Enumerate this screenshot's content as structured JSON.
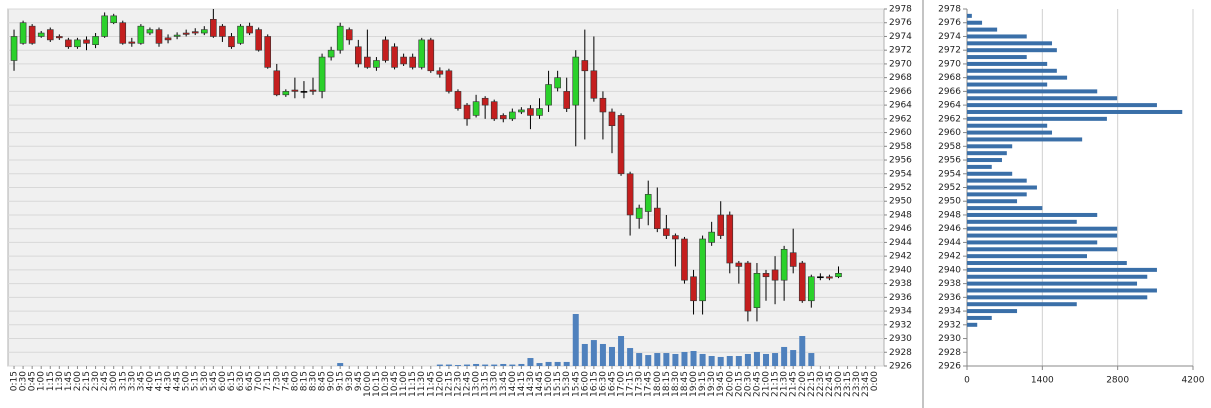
{
  "chart_data": [
    {
      "type": "candlestick",
      "categories": [
        "0:15",
        "0:30",
        "0:45",
        "1:00",
        "1:15",
        "1:30",
        "1:45",
        "2:00",
        "2:15",
        "2:30",
        "2:45",
        "3:00",
        "3:15",
        "3:30",
        "3:45",
        "4:00",
        "4:15",
        "4:30",
        "4:45",
        "5:00",
        "5:15",
        "5:30",
        "5:45",
        "6:00",
        "6:15",
        "6:30",
        "6:45",
        "7:00",
        "7:15",
        "7:30",
        "7:45",
        "8:00",
        "8:15",
        "8:30",
        "8:45",
        "9:00",
        "9:15",
        "9:30",
        "9:45",
        "10:00",
        "10:15",
        "10:30",
        "10:45",
        "11:00",
        "11:15",
        "11:30",
        "11:45",
        "12:00",
        "12:15",
        "12:30",
        "12:45",
        "13:00",
        "13:15",
        "13:30",
        "13:45",
        "14:00",
        "14:15",
        "14:30",
        "14:45",
        "15:00",
        "15:15",
        "15:30",
        "15:45",
        "16:00",
        "16:15",
        "16:30",
        "16:45",
        "17:00",
        "17:15",
        "17:30",
        "17:45",
        "18:00",
        "18:15",
        "18:30",
        "18:45",
        "19:00",
        "19:15",
        "19:30",
        "19:45",
        "20:00",
        "20:15",
        "20:30",
        "20:45",
        "21:00",
        "21:15",
        "21:30",
        "21:45",
        "22:00",
        "22:15",
        "22:30",
        "22:45",
        "23:00",
        "23:15",
        "23:30",
        "23:45",
        "0:00"
      ],
      "open": [
        2970.5,
        2973,
        2975.5,
        2974,
        2975,
        2974,
        2973.5,
        2972.5,
        2973.5,
        2972.8,
        2974,
        2976,
        2976,
        2973.2,
        2973,
        2974.5,
        2975,
        2973.8,
        2974,
        2974.5,
        2974.7,
        2974.5,
        2976.5,
        2975.5,
        2974,
        2973,
        2975.5,
        2975,
        2974,
        2969,
        2965.5,
        2966.2,
        2966,
        2966.2,
        2966,
        2971,
        2972,
        2975,
        2972.5,
        2971,
        2969.5,
        2973.5,
        2972.5,
        2971,
        2971,
        2969.5,
        2973.5,
        2969,
        2969,
        2966,
        2964,
        2962.5,
        2965,
        2964.5,
        2962.5,
        2962,
        2963,
        2963.5,
        2962.5,
        2964,
        2966.5,
        2966,
        2964,
        2970.5,
        2969,
        2965,
        2963,
        2962.5,
        2954,
        2947.5,
        2948.5,
        2949,
        2946,
        2945,
        2944.5,
        2939,
        2935.5,
        2944,
        2948,
        2948,
        2941,
        2941,
        2934.5,
        2939.5,
        2940,
        2938.5,
        2942.5,
        2941,
        2935.5,
        2939,
        2939,
        2939,
        null,
        null,
        null,
        null
      ],
      "high": [
        2975,
        2976.3,
        2975.8,
        2974.8,
        2975.3,
        2974.3,
        2973.8,
        2973.8,
        2974,
        2974.5,
        2977.5,
        2977.3,
        2976.3,
        2973.8,
        2975.8,
        2975.3,
        2975.3,
        2974.3,
        2974.6,
        2975,
        2975.2,
        2975.5,
        2978,
        2975.8,
        2974.5,
        2975.8,
        2976,
        2975.3,
        2974.3,
        2970,
        2966.3,
        2968,
        2967.5,
        2968,
        2971.5,
        2972.5,
        2976,
        2975.3,
        2973.5,
        2975,
        2971,
        2974,
        2973,
        2971.5,
        2971.5,
        2973.8,
        2973.8,
        2969.5,
        2969.3,
        2966.3,
        2964.3,
        2965.5,
        2965.3,
        2964.8,
        2962.8,
        2963.5,
        2963.7,
        2964,
        2965,
        2969,
        2969,
        2968,
        2972,
        2975,
        2974,
        2966,
        2963.5,
        2962.8,
        2954.3,
        2949.5,
        2953,
        2952,
        2948,
        2945.3,
        2944.8,
        2940,
        2945,
        2947,
        2950,
        2948.5,
        2941.3,
        2941.3,
        2941,
        2940,
        2942,
        2943.5,
        2946,
        2941.3,
        2939.3,
        2939.5,
        2939.3,
        2940.5,
        null,
        null,
        null,
        null
      ],
      "low": [
        2969,
        2972.8,
        2972.8,
        2973.8,
        2973.2,
        2973.5,
        2972.2,
        2972.2,
        2972,
        2972.3,
        2973.8,
        2975.8,
        2972.8,
        2972.5,
        2972.8,
        2974.2,
        2972.5,
        2973,
        2973.6,
        2974,
        2974.2,
        2974.2,
        2973.8,
        2973.2,
        2972.2,
        2972.8,
        2974.2,
        2971.8,
        2969.3,
        2965.3,
        2965.2,
        2965,
        2965,
        2965.5,
        2965,
        2970.5,
        2971.5,
        2972.8,
        2969.5,
        2969.3,
        2969,
        2970.2,
        2969.2,
        2969.7,
        2969.2,
        2969.2,
        2968.7,
        2968,
        2965.7,
        2963.2,
        2961,
        2962.2,
        2962,
        2961.7,
        2961.5,
        2961.7,
        2962.7,
        2960.5,
        2962,
        2963,
        2966,
        2963,
        2958,
        2959,
        2964.5,
        2959,
        2957,
        2953.7,
        2945,
        2946,
        2946.5,
        2945.5,
        2944.5,
        2940.5,
        2938,
        2933.5,
        2933.5,
        2943.5,
        2944.5,
        2939.5,
        2938,
        2932.5,
        2932.5,
        2935.5,
        2935,
        2935.5,
        2939.5,
        2935.2,
        2934.5,
        2938.5,
        2938.5,
        2938.8,
        null,
        null,
        null,
        null
      ],
      "close": [
        2974,
        2976,
        2973,
        2974.5,
        2973.5,
        2973.8,
        2972.5,
        2973.5,
        2973,
        2974,
        2977,
        2977,
        2973,
        2973,
        2975.5,
        2975,
        2973,
        2973.5,
        2974.2,
        2974.3,
        2974.5,
        2975,
        2974,
        2974,
        2972.5,
        2975.5,
        2974.5,
        2972,
        2969.5,
        2965.5,
        2966,
        2966,
        2966,
        2966,
        2971,
        2972,
        2975.5,
        2973.5,
        2970,
        2969.5,
        2970.5,
        2970.5,
        2969.5,
        2970,
        2969.5,
        2973.5,
        2969,
        2968.5,
        2966,
        2963.5,
        2962,
        2964.5,
        2964,
        2962,
        2962,
        2963,
        2963.3,
        2962.5,
        2963.5,
        2967,
        2968,
        2963.5,
        2971,
        2969,
        2965,
        2963,
        2961,
        2954,
        2948,
        2949,
        2951,
        2946,
        2945,
        2944.5,
        2938.5,
        2935.5,
        2944.5,
        2945.5,
        2945,
        2941,
        2940.5,
        2934,
        2939.5,
        2939,
        2938.5,
        2943,
        2940.5,
        2935.5,
        2939,
        2939,
        2938.8,
        2939.5,
        null,
        null,
        null,
        null
      ],
      "volume": [
        0,
        0,
        0,
        0,
        0,
        0,
        0,
        0,
        0,
        0,
        0,
        0,
        0,
        0,
        0,
        0,
        0,
        0,
        0,
        0,
        0,
        0,
        0,
        0,
        0,
        0,
        0,
        0,
        0,
        0,
        0,
        0,
        0,
        0,
        0,
        0,
        250,
        0,
        0,
        0,
        0,
        0,
        0,
        0,
        0,
        0,
        0,
        120,
        120,
        80,
        120,
        170,
        120,
        120,
        170,
        120,
        170,
        670,
        250,
        340,
        340,
        340,
        4370,
        1850,
        2180,
        1850,
        1600,
        2520,
        1510,
        1090,
        920,
        1090,
        1090,
        1010,
        1180,
        1260,
        1010,
        840,
        760,
        840,
        840,
        1010,
        1180,
        1010,
        1090,
        1600,
        1340,
        2520,
        1090,
        0,
        0,
        0,
        0,
        0,
        0,
        0
      ],
      "up_color": "#2bd12b",
      "down_color": "#c41e1e",
      "volume_color": "#4f81bd",
      "ylim": [
        2926,
        2978
      ],
      "yticks": [
        2926,
        2928,
        2930,
        2932,
        2934,
        2936,
        2938,
        2940,
        2942,
        2944,
        2946,
        2948,
        2950,
        2952,
        2954,
        2956,
        2958,
        2960,
        2962,
        2964,
        2966,
        2968,
        2970,
        2972,
        2974,
        2976,
        2978
      ],
      "y2lim": [
        0,
        30000
      ],
      "grid": true
    },
    {
      "type": "barh",
      "y": [
        2977,
        2976,
        2975,
        2974,
        2973,
        2972,
        2971,
        2970,
        2969,
        2968,
        2967,
        2966,
        2965,
        2964,
        2963,
        2962,
        2961,
        2960,
        2959,
        2958,
        2957,
        2956,
        2955,
        2954,
        2953,
        2952,
        2951,
        2950,
        2949,
        2948,
        2947,
        2946,
        2945,
        2944,
        2943,
        2942,
        2941,
        2940,
        2939,
        2938,
        2937,
        2936,
        2935,
        2934,
        2933,
        2932
      ],
      "values": [
        90,
        280,
        560,
        1110,
        1580,
        1670,
        1110,
        1490,
        1670,
        1860,
        1490,
        2420,
        2790,
        3530,
        4000,
        2600,
        1490,
        1580,
        2140,
        840,
        740,
        650,
        460,
        840,
        1110,
        1300,
        1110,
        930,
        1400,
        2420,
        2040,
        2790,
        2790,
        2420,
        2790,
        2230,
        2970,
        3530,
        3350,
        3160,
        3530,
        3350,
        2040,
        930,
        460,
        190
      ],
      "color": "#3a6fa8",
      "ylim": [
        2926,
        2978
      ],
      "yticks": [
        2926,
        2928,
        2930,
        2932,
        2934,
        2936,
        2938,
        2940,
        2942,
        2944,
        2946,
        2948,
        2950,
        2952,
        2954,
        2956,
        2958,
        2960,
        2962,
        2964,
        2966,
        2968,
        2970,
        2972,
        2974,
        2976,
        2978
      ],
      "xlim": [
        0,
        4200
      ],
      "xticks": [
        0,
        1400,
        2800,
        4200
      ],
      "grid": true
    }
  ]
}
